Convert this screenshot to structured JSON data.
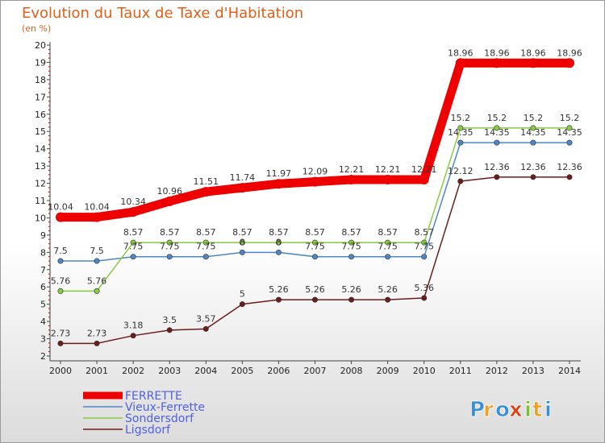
{
  "chart_data": {
    "type": "line",
    "title": "Evolution du Taux de Taxe d'Habitation",
    "ylabel": "(en %)",
    "xlabel": "",
    "ylim": [
      2,
      20
    ],
    "yticks": [
      2,
      3,
      4,
      5,
      6,
      7,
      8,
      9,
      10,
      11,
      12,
      13,
      14,
      15,
      16,
      17,
      18,
      19,
      20
    ],
    "x": [
      "2000",
      "2001",
      "2002",
      "2003",
      "2004",
      "2005",
      "2006",
      "2007",
      "2008",
      "2009",
      "2010",
      "2011",
      "2012",
      "2013",
      "2014"
    ],
    "grid": false,
    "legend_position": "bottom-left",
    "series": [
      {
        "name": "FERRETTE",
        "color": "#ee0000",
        "values": [
          10.04,
          10.04,
          10.34,
          10.96,
          11.51,
          11.74,
          11.97,
          12.09,
          12.21,
          12.21,
          12.21,
          18.96,
          18.96,
          18.96,
          18.96
        ],
        "labels": [
          "10.04",
          "10.04",
          "10.34",
          "10.96",
          "11.51",
          "11.74",
          "11.97",
          "12.09",
          "12.21",
          "12.21",
          "12.21",
          "18.96",
          "18.96",
          "18.96",
          "18.96"
        ]
      },
      {
        "name": "Vieux-Ferrette",
        "color": "#4f86c6",
        "values": [
          7.5,
          7.5,
          7.75,
          7.75,
          7.75,
          8,
          8,
          7.75,
          7.75,
          7.75,
          7.75,
          14.35,
          14.35,
          14.35,
          14.35
        ],
        "labels": [
          "7.5",
          "7.5",
          "7.75",
          "7.75",
          "7.75",
          "8",
          "8",
          "7.75",
          "7.75",
          "7.75",
          "7.75",
          "14.35",
          "14.35",
          "14.35",
          "14.35"
        ]
      },
      {
        "name": "Sondersdorf",
        "color": "#88cc44",
        "values": [
          5.76,
          5.76,
          8.57,
          8.57,
          8.57,
          8.57,
          8.57,
          8.57,
          8.57,
          8.57,
          8.57,
          15.2,
          15.2,
          15.2,
          15.2
        ],
        "labels": [
          "5.76",
          "5.76",
          "8.57",
          "8.57",
          "8.57",
          "8.57",
          "8.57",
          "8.57",
          "8.57",
          "8.57",
          "8.57",
          "15.2",
          "15.2",
          "15.2",
          "15.2"
        ]
      },
      {
        "name": "Ligsdorf",
        "color": "#6b1d1d",
        "values": [
          2.73,
          2.73,
          3.18,
          3.5,
          3.57,
          5,
          5.26,
          5.26,
          5.26,
          5.26,
          5.36,
          12.12,
          12.36,
          12.36,
          12.36
        ],
        "labels": [
          "2.73",
          "2.73",
          "3.18",
          "3.5",
          "3.57",
          "5",
          "5.26",
          "5.26",
          "5.26",
          "5.26",
          "5.36",
          "12.12",
          "12.36",
          "12.36",
          "12.36"
        ]
      }
    ]
  },
  "logo": {
    "text": "Proxiti",
    "letters": [
      "P",
      "r",
      "o",
      "x",
      "i",
      "t",
      "i"
    ],
    "colors": [
      "#3a8fd8",
      "#f0a020",
      "#3a8fd8",
      "#e04010",
      "#7cc030",
      "#f0a020",
      "#3a8fd8"
    ]
  }
}
